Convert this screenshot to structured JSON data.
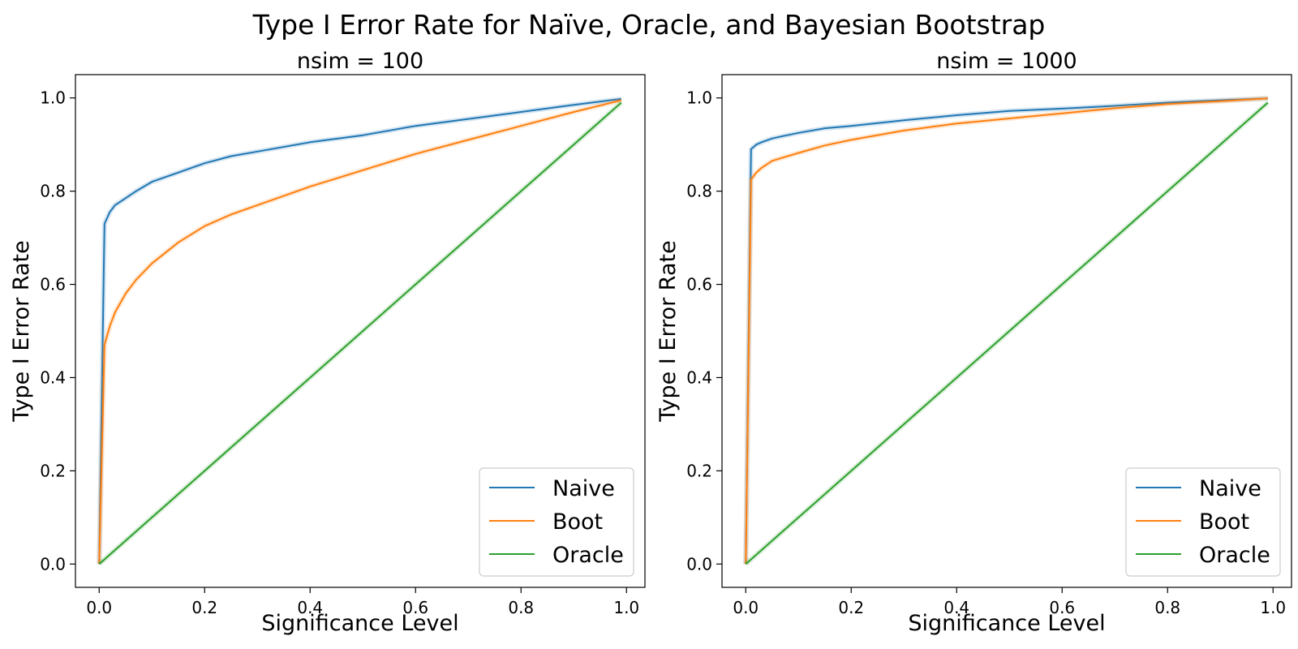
{
  "suptitle": "Type I Error Rate for Naïve, Oracle, and Bayesian Bootstrap",
  "chart_data": [
    {
      "type": "line",
      "title": "nsim = 100",
      "xlabel": "Significance Level",
      "ylabel": "Type I Error Rate",
      "xlim": [
        -0.045,
        1.035
      ],
      "ylim": [
        -0.05,
        1.05
      ],
      "xticks": [
        "0.0",
        "0.2",
        "0.4",
        "0.6",
        "0.8",
        "1.0"
      ],
      "yticks": [
        "0.0",
        "0.2",
        "0.4",
        "0.6",
        "0.8",
        "1.0"
      ],
      "grid": false,
      "legend_position": "lower-right",
      "series": [
        {
          "name": "Naive",
          "color": "#1f77b4",
          "x": [
            0,
            0.01,
            0.02,
            0.03,
            0.05,
            0.07,
            0.1,
            0.15,
            0.2,
            0.25,
            0.3,
            0.4,
            0.5,
            0.6,
            0.7,
            0.8,
            0.9,
            0.99
          ],
          "y": [
            0,
            0.73,
            0.755,
            0.77,
            0.785,
            0.8,
            0.82,
            0.84,
            0.86,
            0.875,
            0.885,
            0.905,
            0.92,
            0.94,
            0.955,
            0.97,
            0.985,
            0.998
          ]
        },
        {
          "name": "Boot",
          "color": "#ff7f0e",
          "x": [
            0,
            0.01,
            0.02,
            0.03,
            0.05,
            0.07,
            0.1,
            0.15,
            0.2,
            0.25,
            0.3,
            0.4,
            0.5,
            0.6,
            0.7,
            0.8,
            0.9,
            0.99
          ],
          "y": [
            0,
            0.47,
            0.51,
            0.54,
            0.58,
            0.61,
            0.645,
            0.69,
            0.725,
            0.75,
            0.77,
            0.81,
            0.845,
            0.88,
            0.91,
            0.94,
            0.97,
            0.995
          ]
        },
        {
          "name": "Oracle",
          "color": "#2ca02c",
          "x": [
            0,
            0.1,
            0.2,
            0.3,
            0.4,
            0.5,
            0.6,
            0.7,
            0.8,
            0.9,
            0.99
          ],
          "y": [
            0,
            0.1,
            0.2,
            0.3,
            0.4,
            0.5,
            0.6,
            0.7,
            0.8,
            0.9,
            0.99
          ]
        }
      ]
    },
    {
      "type": "line",
      "title": "nsim = 1000",
      "xlabel": "Significance Level",
      "ylabel": "Type I Error Rate",
      "xlim": [
        -0.045,
        1.035
      ],
      "ylim": [
        -0.05,
        1.05
      ],
      "xticks": [
        "0.0",
        "0.2",
        "0.4",
        "0.6",
        "0.8",
        "1.0"
      ],
      "yticks": [
        "0.0",
        "0.2",
        "0.4",
        "0.6",
        "0.8",
        "1.0"
      ],
      "grid": false,
      "legend_position": "lower-right",
      "series": [
        {
          "name": "Naive",
          "color": "#1f77b4",
          "x": [
            0,
            0.01,
            0.02,
            0.03,
            0.05,
            0.07,
            0.1,
            0.15,
            0.2,
            0.3,
            0.4,
            0.5,
            0.6,
            0.7,
            0.8,
            0.9,
            0.99
          ],
          "y": [
            0,
            0.89,
            0.9,
            0.905,
            0.913,
            0.918,
            0.925,
            0.935,
            0.94,
            0.952,
            0.963,
            0.972,
            0.977,
            0.983,
            0.99,
            0.995,
            0.999
          ]
        },
        {
          "name": "Boot",
          "color": "#ff7f0e",
          "x": [
            0,
            0.01,
            0.02,
            0.03,
            0.05,
            0.07,
            0.1,
            0.15,
            0.2,
            0.3,
            0.4,
            0.5,
            0.6,
            0.7,
            0.8,
            0.9,
            0.99
          ],
          "y": [
            0,
            0.825,
            0.84,
            0.85,
            0.865,
            0.872,
            0.882,
            0.898,
            0.91,
            0.93,
            0.945,
            0.956,
            0.967,
            0.978,
            0.987,
            0.993,
            0.999
          ]
        },
        {
          "name": "Oracle",
          "color": "#2ca02c",
          "x": [
            0,
            0.1,
            0.2,
            0.3,
            0.4,
            0.5,
            0.6,
            0.7,
            0.8,
            0.9,
            0.99
          ],
          "y": [
            0,
            0.1,
            0.2,
            0.3,
            0.4,
            0.5,
            0.6,
            0.7,
            0.8,
            0.9,
            0.99
          ]
        }
      ]
    }
  ]
}
